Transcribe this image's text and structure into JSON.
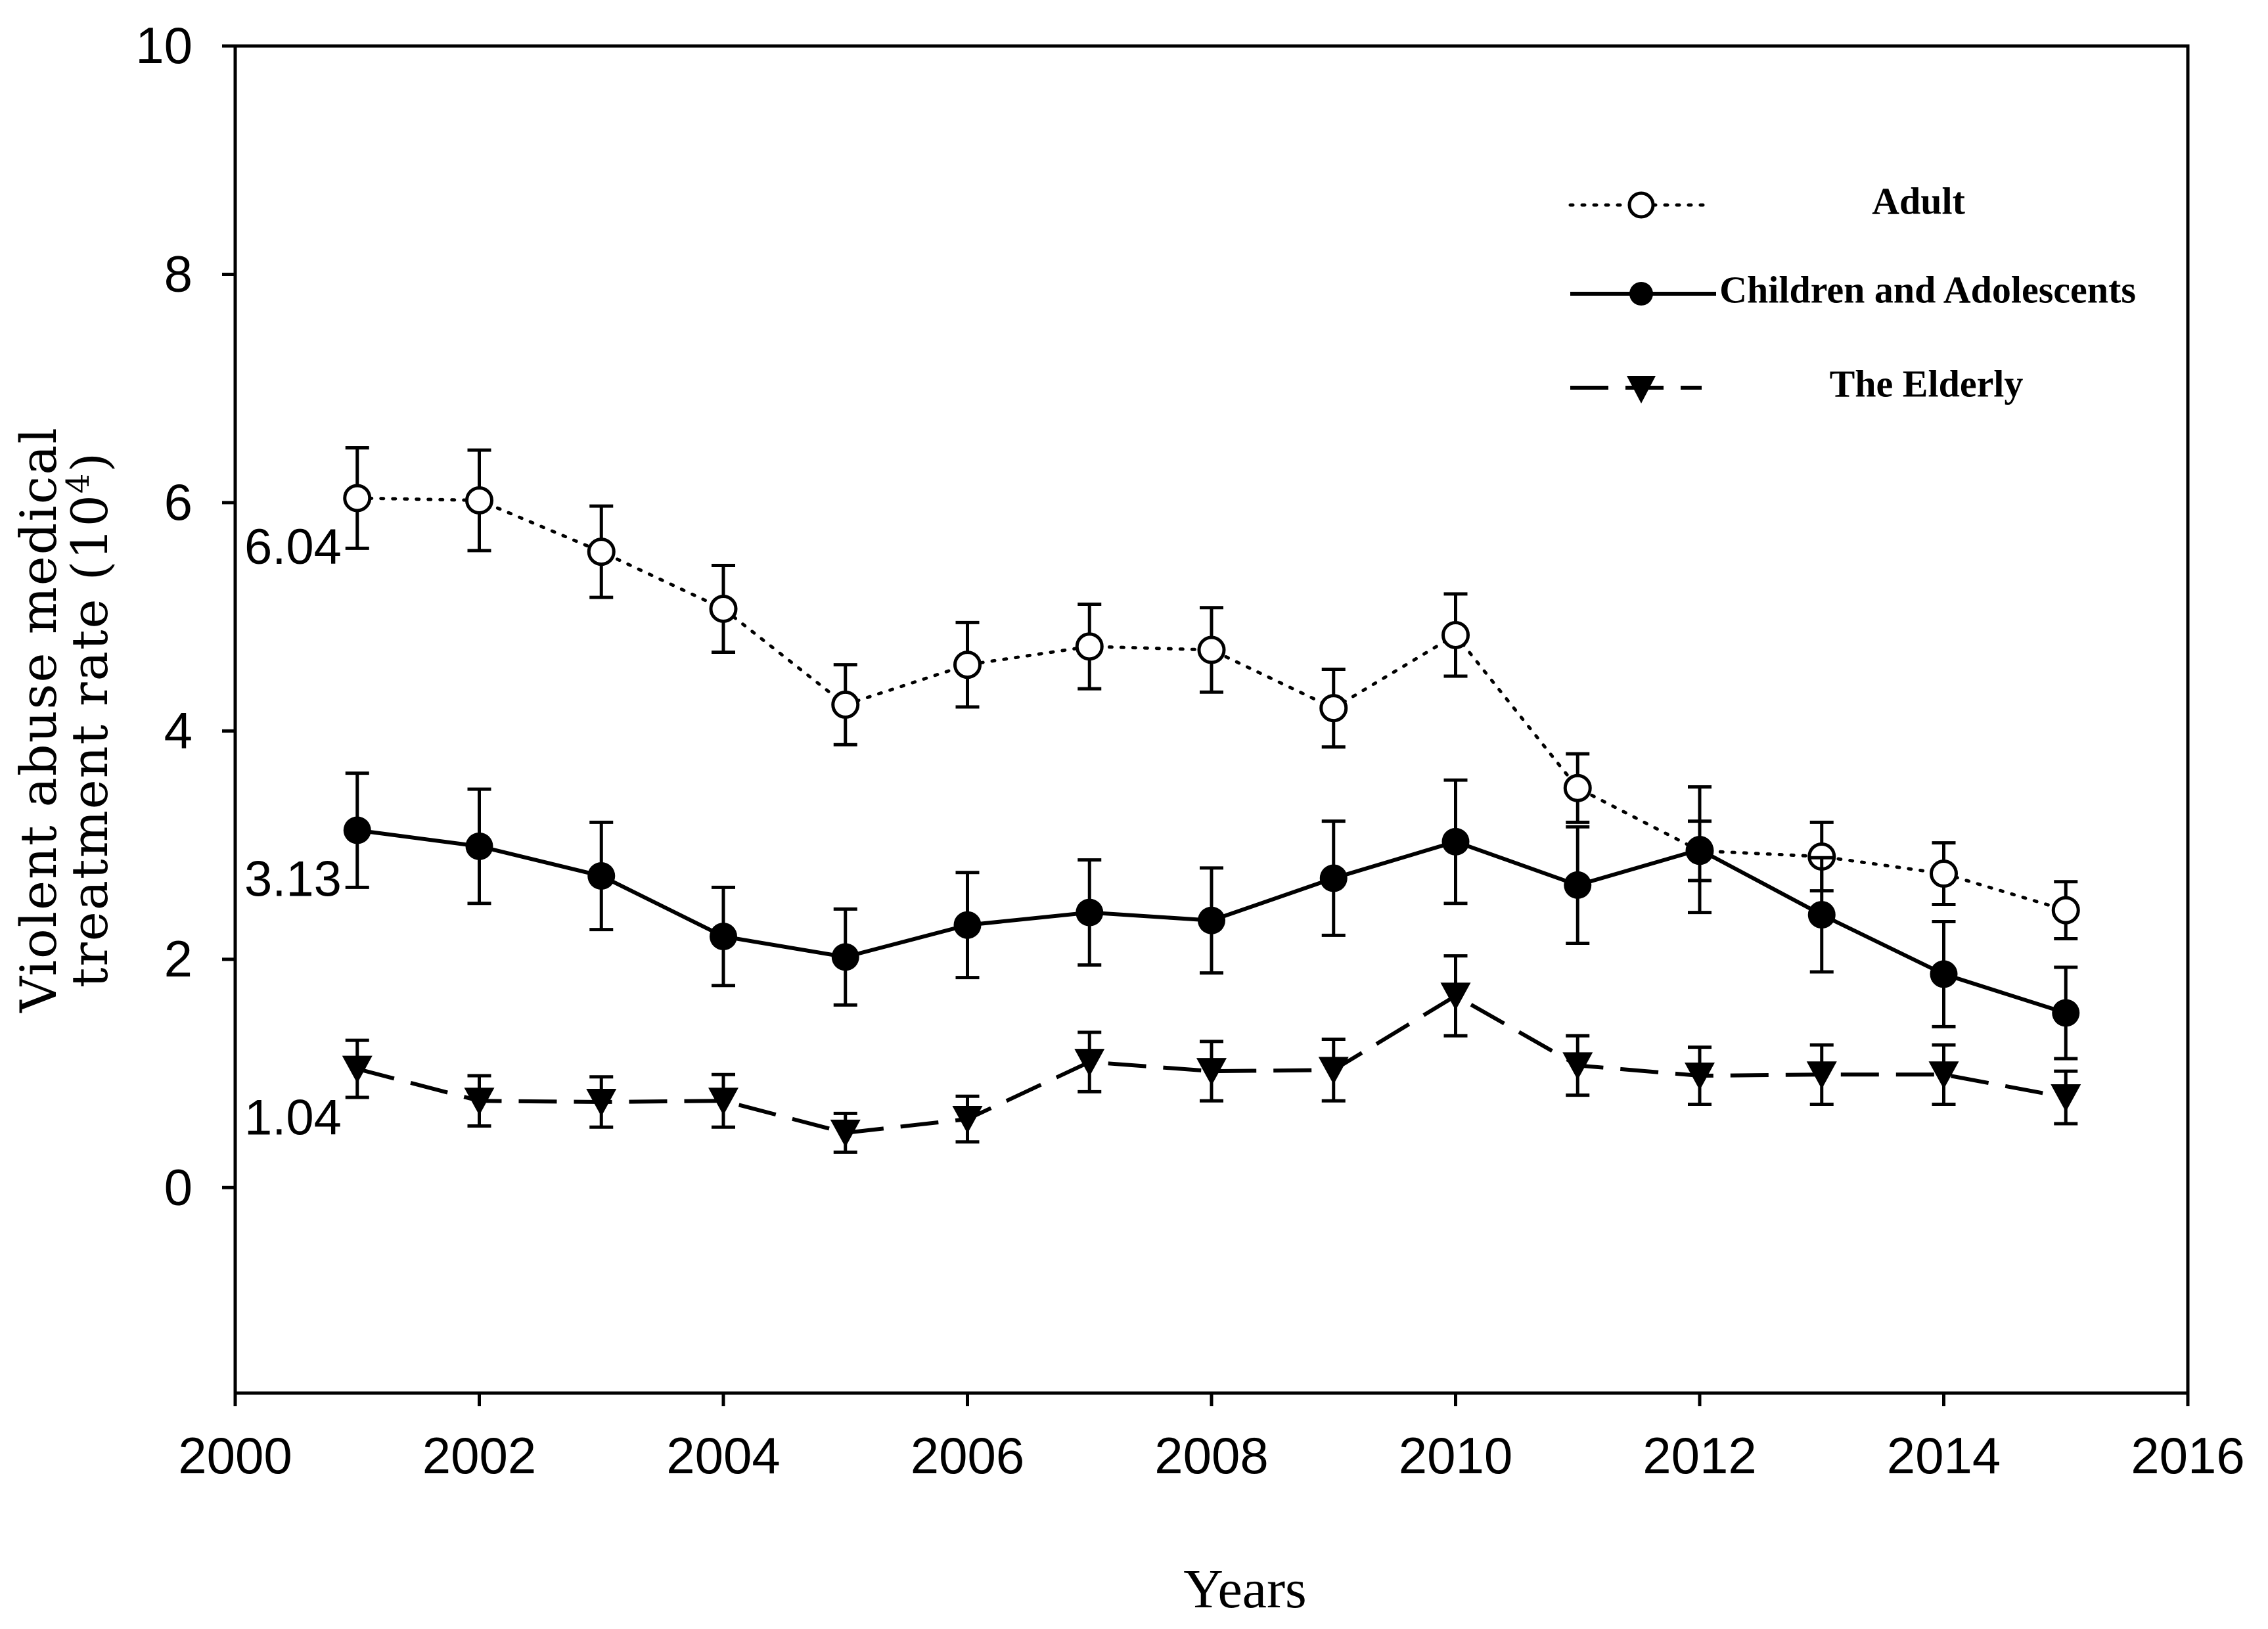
{
  "chart_data": {
    "type": "line",
    "title": "",
    "xlabel": "Years",
    "ylabel_line1": "Violent abuse medical",
    "ylabel_line2": "treatment rate (10",
    "ylabel_exp": "4",
    "ylabel_close": ")",
    "xlim": [
      2000,
      2016
    ],
    "ylim": [
      -1.8,
      10
    ],
    "x_ticks": [
      2000,
      2002,
      2004,
      2006,
      2008,
      2010,
      2012,
      2014,
      2016
    ],
    "x_tick_labels": [
      "2000",
      "2002",
      "2004",
      "2006",
      "2008",
      "2010",
      "2012",
      "2014",
      "2016"
    ],
    "y_ticks": [
      0,
      2,
      4,
      6,
      8,
      10
    ],
    "y_tick_labels": [
      "0",
      "2",
      "4",
      "6",
      "8",
      "10"
    ],
    "grid": false,
    "legend_position": "top-right",
    "x": [
      2001,
      2002,
      2003,
      2004,
      2005,
      2006,
      2007,
      2008,
      2009,
      2010,
      2011,
      2012,
      2013,
      2014,
      2015
    ],
    "series": [
      {
        "name": "Adult",
        "line_style": "dotted",
        "marker": "open-circle",
        "values": [
          6.04,
          6.02,
          5.57,
          5.07,
          4.23,
          4.58,
          4.74,
          4.71,
          4.2,
          4.84,
          3.5,
          2.95,
          2.9,
          2.75,
          2.43
        ],
        "errors": [
          0.44,
          0.44,
          0.4,
          0.38,
          0.35,
          0.37,
          0.37,
          0.37,
          0.34,
          0.36,
          0.3,
          0.26,
          0.3,
          0.27,
          0.25
        ]
      },
      {
        "name": "Children and Adolescents",
        "line_style": "solid",
        "marker": "filled-circle",
        "values": [
          3.13,
          2.99,
          2.73,
          2.2,
          2.02,
          2.3,
          2.41,
          2.34,
          2.71,
          3.03,
          2.65,
          2.96,
          2.39,
          1.87,
          1.53
        ],
        "errors": [
          0.5,
          0.5,
          0.47,
          0.43,
          0.42,
          0.46,
          0.46,
          0.46,
          0.5,
          0.54,
          0.51,
          0.55,
          0.5,
          0.46,
          0.4
        ]
      },
      {
        "name": "The Elderly",
        "line_style": "dashed",
        "marker": "filled-triangle-down",
        "values": [
          1.04,
          0.76,
          0.75,
          0.76,
          0.48,
          0.6,
          1.1,
          1.02,
          1.03,
          1.68,
          1.07,
          0.98,
          0.99,
          0.99,
          0.79
        ],
        "errors": [
          0.25,
          0.22,
          0.22,
          0.23,
          0.17,
          0.2,
          0.26,
          0.26,
          0.27,
          0.35,
          0.26,
          0.25,
          0.26,
          0.26,
          0.23
        ]
      }
    ],
    "annotations": [
      {
        "text": "6.04",
        "x": 2001,
        "y": 6.04
      },
      {
        "text": "3.13",
        "x": 2001,
        "y": 3.13
      },
      {
        "text": "1.04",
        "x": 2001,
        "y": 1.04
      }
    ]
  }
}
